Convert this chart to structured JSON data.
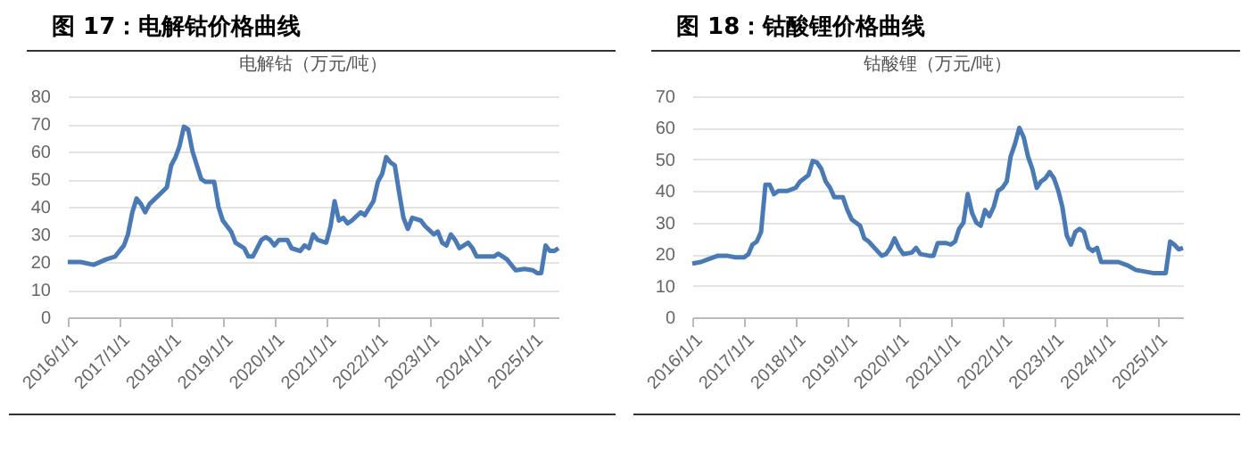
{
  "chart_data": [
    {
      "type": "line",
      "title": "图 17：电解钴价格曲线",
      "subtitle": "电解钴（万元/吨）",
      "series": [
        {
          "color": "#4a7ab5",
          "x": [
            "2016-01",
            "2016-04",
            "2016-07",
            "2016-10",
            "2016-12",
            "2017-02",
            "2017-03",
            "2017-04",
            "2017-05",
            "2017-06",
            "2017-07",
            "2017-08",
            "2017-10",
            "2017-12",
            "2018-01",
            "2018-02",
            "2018-03",
            "2018-04",
            "2018-05",
            "2018-06",
            "2018-08",
            "2018-09",
            "2018-11",
            "2018-12",
            "2019-01",
            "2019-03",
            "2019-04",
            "2019-06",
            "2019-07",
            "2019-08",
            "2019-10",
            "2019-11",
            "2019-12",
            "2020-01",
            "2020-02",
            "2020-04",
            "2020-05",
            "2020-07",
            "2020-08",
            "2020-09",
            "2020-10",
            "2020-11",
            "2021-01",
            "2021-02",
            "2021-03",
            "2021-04",
            "2021-05",
            "2021-06",
            "2021-07",
            "2021-09",
            "2021-10",
            "2021-12",
            "2022-01",
            "2022-02",
            "2022-03",
            "2022-04",
            "2022-05",
            "2022-06",
            "2022-07",
            "2022-08",
            "2022-09",
            "2022-11",
            "2022-12",
            "2023-02",
            "2023-03",
            "2023-04",
            "2023-05",
            "2023-06",
            "2023-07",
            "2023-08",
            "2023-09",
            "2023-10",
            "2023-11",
            "2023-12",
            "2024-02",
            "2024-04",
            "2024-05",
            "2024-07",
            "2024-09",
            "2024-11",
            "2025-01",
            "2025-02",
            "2025-03",
            "2025-04",
            "2025-05",
            "2025-06",
            "2025-07"
          ],
          "values": [
            20,
            20,
            19,
            21,
            22,
            26,
            30,
            38,
            43,
            41,
            38,
            41,
            44,
            47,
            55,
            58,
            62,
            69,
            68,
            60,
            50,
            49,
            49,
            40,
            35,
            31,
            27,
            25,
            22,
            22,
            28,
            29,
            28,
            26,
            28,
            28,
            25,
            24,
            26,
            25,
            30,
            28,
            27,
            33,
            42,
            35,
            36,
            34,
            35,
            38,
            37,
            42,
            49,
            52,
            58,
            56,
            55,
            45,
            36,
            32,
            36,
            35,
            33,
            30,
            31,
            27,
            26,
            30,
            28,
            25,
            26,
            27,
            25,
            22,
            22,
            22,
            23,
            21,
            17,
            17.5,
            17,
            16,
            16,
            26,
            24,
            24,
            25
          ]
        }
      ],
      "xlim": [
        "2016-01-01",
        "2025-07-01"
      ],
      "xticks": [
        {
          "value": "2016-01-01",
          "label": "2016/1/1"
        },
        {
          "value": "2017-01-01",
          "label": "2017/1/1"
        },
        {
          "value": "2018-01-01",
          "label": "2018/1/1"
        },
        {
          "value": "2019-01-01",
          "label": "2019/1/1"
        },
        {
          "value": "2020-01-01",
          "label": "2020/1/1"
        },
        {
          "value": "2021-01-01",
          "label": "2021/1/1"
        },
        {
          "value": "2022-01-01",
          "label": "2022/1/1"
        },
        {
          "value": "2023-01-01",
          "label": "2023/1/1"
        },
        {
          "value": "2024-01-01",
          "label": "2024/1/1"
        },
        {
          "value": "2025-01-01",
          "label": "2025/1/1"
        }
      ],
      "ylim": [
        0,
        80
      ],
      "yticks": [
        0,
        10,
        20,
        30,
        40,
        50,
        60,
        70,
        80
      ],
      "grid": "y",
      "legend": false
    },
    {
      "type": "line",
      "title": "图 18：钴酸锂价格曲线",
      "subtitle": "钴酸锂（万元/吨）",
      "series": [
        {
          "color": "#4a7ab5",
          "x": [
            "2016-01",
            "2016-03",
            "2016-05",
            "2016-07",
            "2016-09",
            "2016-11",
            "2016-12",
            "2017-01",
            "2017-02",
            "2017-03",
            "2017-04",
            "2017-05",
            "2017-06",
            "2017-07",
            "2017-08",
            "2017-09",
            "2017-11",
            "2018-01",
            "2018-02",
            "2018-04",
            "2018-05",
            "2018-06",
            "2018-07",
            "2018-08",
            "2018-09",
            "2018-10",
            "2018-12",
            "2019-01",
            "2019-02",
            "2019-04",
            "2019-05",
            "2019-06",
            "2019-08",
            "2019-09",
            "2019-10",
            "2019-11",
            "2019-12",
            "2020-01",
            "2020-02",
            "2020-04",
            "2020-05",
            "2020-06",
            "2020-08",
            "2020-09",
            "2020-10",
            "2020-12",
            "2021-01",
            "2021-02",
            "2021-03",
            "2021-04",
            "2021-05",
            "2021-06",
            "2021-07",
            "2021-08",
            "2021-09",
            "2021-10",
            "2021-11",
            "2021-12",
            "2022-01",
            "2022-02",
            "2022-03",
            "2022-04",
            "2022-05",
            "2022-06",
            "2022-07",
            "2022-08",
            "2022-09",
            "2022-10",
            "2022-11",
            "2022-12",
            "2023-01",
            "2023-02",
            "2023-03",
            "2023-04",
            "2023-05",
            "2023-06",
            "2023-07",
            "2023-08",
            "2023-09",
            "2023-10",
            "2023-11",
            "2023-12",
            "2024-02",
            "2024-04",
            "2024-06",
            "2024-08",
            "2024-10",
            "2024-12",
            "2025-03",
            "2025-04",
            "2025-05",
            "2025-06",
            "2025-07"
          ],
          "values": [
            17,
            17.5,
            18.5,
            19.5,
            19.5,
            19,
            19,
            19,
            20,
            23,
            24,
            27,
            42,
            42,
            39,
            40,
            40,
            41,
            43,
            45,
            49.5,
            49,
            47,
            43,
            41,
            38,
            38,
            34,
            31,
            29,
            25,
            24,
            21,
            19.5,
            20,
            22,
            25,
            22,
            20,
            20.5,
            22,
            20,
            19.5,
            19.5,
            23.5,
            23.5,
            23,
            24,
            28,
            30,
            39,
            33,
            30,
            29,
            34,
            32,
            35,
            40,
            41,
            43,
            51,
            55,
            60,
            57,
            51,
            47,
            41,
            43,
            44,
            46,
            44,
            40,
            35,
            26,
            23,
            27,
            28,
            27,
            22,
            21,
            22,
            17.5,
            17.5,
            17.5,
            16.5,
            15,
            14.5,
            14,
            14,
            24,
            23,
            21.5,
            22
          ]
        }
      ],
      "xlim": [
        "2016-01-01",
        "2025-07-01"
      ],
      "xticks": [
        {
          "value": "2016-01-01",
          "label": "2016/1/1"
        },
        {
          "value": "2017-01-01",
          "label": "2017/1/1"
        },
        {
          "value": "2018-01-01",
          "label": "2018/1/1"
        },
        {
          "value": "2019-01-01",
          "label": "2019/1/1"
        },
        {
          "value": "2020-01-01",
          "label": "2020/1/1"
        },
        {
          "value": "2021-01-01",
          "label": "2021/1/1"
        },
        {
          "value": "2022-01-01",
          "label": "2022/1/1"
        },
        {
          "value": "2023-01-01",
          "label": "2023/1/1"
        },
        {
          "value": "2024-01-01",
          "label": "2024/1/1"
        },
        {
          "value": "2025-01-01",
          "label": "2025/1/1"
        }
      ],
      "ylim": [
        0,
        70
      ],
      "yticks": [
        0,
        10,
        20,
        30,
        40,
        50,
        60,
        70
      ],
      "grid": "y",
      "legend": false
    }
  ]
}
